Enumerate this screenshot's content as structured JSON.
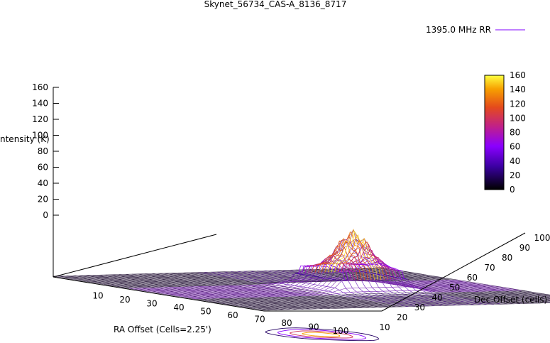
{
  "chart_data": {
    "type": "surface3d",
    "title": "Skynet_56734_CAS-A_8136_8717",
    "legend": {
      "label": "1395.0 MHz RR",
      "color": "#8000ff",
      "placement": "top-right"
    },
    "xlabel": "RA Offset (Cells=2.25')",
    "ylabel": "Dec Offset (cells)",
    "zlabel": "Intensity (K)",
    "zlabel_visible": "ntensity (K)",
    "x_ticks": [
      "10",
      "20",
      "30",
      "40",
      "50",
      "60",
      "70",
      "80",
      "90",
      "100"
    ],
    "y_ticks": [
      "10",
      "20",
      "30",
      "40",
      "50",
      "60",
      "70",
      "80",
      "90",
      "100"
    ],
    "z_ticks": [
      "0",
      "20",
      "40",
      "60",
      "80",
      "100",
      "120",
      "140",
      "160"
    ],
    "xlim": [
      0,
      100
    ],
    "ylim": [
      0,
      100
    ],
    "zlim": [
      0,
      160
    ],
    "colorbar": {
      "min": 0,
      "max": 160,
      "ticks": [
        "0",
        "20",
        "40",
        "60",
        "80",
        "100",
        "120",
        "140",
        "160"
      ]
    },
    "grid_size": 100,
    "source": {
      "x": 52,
      "y": 58,
      "peak_k": 160,
      "base_k": 2
    },
    "plateau": {
      "x_min": 40,
      "x_max": 62,
      "y_min": 48,
      "y_max": 68,
      "height_k": 55
    },
    "contours": true
  }
}
